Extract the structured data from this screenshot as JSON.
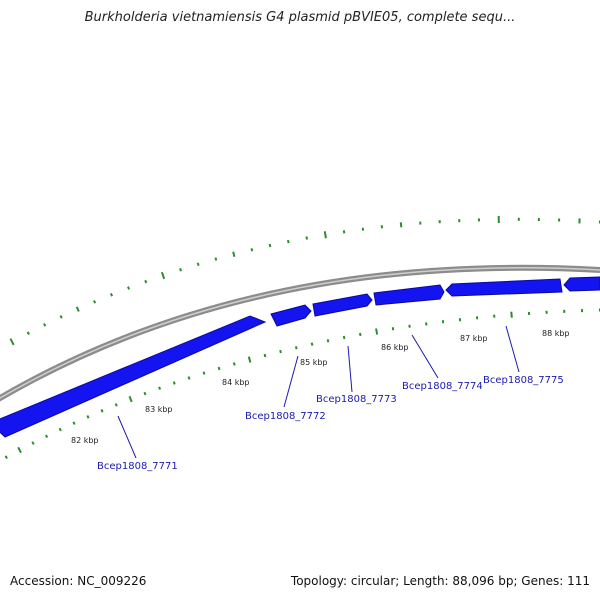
{
  "header": {
    "title": "Burkholderia vietnamiensis G4 plasmid pBVIE05, complete sequ..."
  },
  "footer": {
    "accession": "Accession: NC_009226",
    "summary": "Topology: circular; Length: 88,096 bp; Genes: 111"
  },
  "colors": {
    "backbone": "#8c8c8c",
    "gene_fill": "#1414f0",
    "gene_stroke": "#0a0a9c",
    "feature_marks": "#2e8b2e",
    "label_line": "#1a1ab0"
  },
  "scale_labels": [
    "82 kbp",
    "83 kbp",
    "84 kbp",
    "85 kbp",
    "86 kbp",
    "87 kbp",
    "88 kbp"
  ],
  "genes": [
    {
      "label": "Bcep1808_7771"
    },
    {
      "label": "Bcep1808_7772"
    },
    {
      "label": "Bcep1808_7773"
    },
    {
      "label": "Bcep1808_7774"
    },
    {
      "label": "Bcep1808_7775"
    }
  ]
}
